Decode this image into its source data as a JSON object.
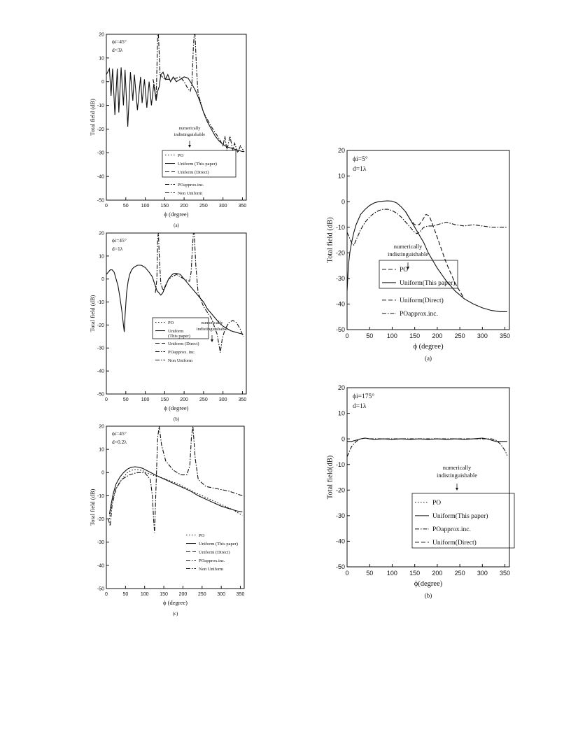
{
  "charts": [
    {
      "type": "line",
      "caption": "(a)",
      "params": [
        "ϕi=45°",
        "d=3λ"
      ],
      "xlabel": "ϕ (degree)",
      "ylabel": "Total field (dB)",
      "xlim": [
        0,
        360
      ],
      "ylim": [
        -50,
        20
      ],
      "xticks": [
        0,
        50,
        100,
        150,
        200,
        250,
        300,
        350
      ],
      "yticks": [
        20,
        10,
        0,
        -10,
        -20,
        -30,
        -40,
        -50
      ],
      "annotation": "numerically\nindistinguishable",
      "legend": [
        "PO",
        "Uniform (This paper)",
        "Uniform (Direct)",
        "POapprox.inc.",
        "Non Uniform"
      ],
      "series": [
        {
          "name": "Uniform (This paper)",
          "style": "solid",
          "x": [
            0,
            8,
            12,
            16,
            22,
            28,
            32,
            38,
            44,
            48,
            55,
            62,
            68,
            72,
            80,
            88,
            92,
            98,
            104,
            110,
            116,
            122,
            128,
            132,
            136,
            140,
            146,
            152,
            158,
            165,
            172,
            180,
            190,
            200,
            210,
            220,
            230,
            240,
            250,
            260,
            270,
            280,
            290,
            300,
            310,
            320,
            330,
            340,
            350,
            355
          ],
          "y": [
            3,
            5.5,
            -6,
            5.5,
            -14,
            5.5,
            -13,
            6,
            -10,
            5,
            -19,
            4,
            -8,
            3,
            -12,
            2,
            -9,
            1,
            -11,
            0,
            -10,
            -1,
            -8,
            -4,
            -2,
            3,
            4,
            1,
            3,
            0,
            2,
            0,
            1,
            2,
            1.5,
            -1,
            -4,
            -8,
            -13,
            -17,
            -20,
            -23,
            -25,
            -26.5,
            -27.5,
            -28,
            -28.5,
            -29,
            -29.5,
            -29.5
          ]
        },
        {
          "name": "POapprox.inc.",
          "style": "dashdot",
          "x": [
            120,
            124,
            128,
            130,
            132,
            134,
            138,
            150,
            170,
            190,
            200,
            210,
            216,
            220,
            224,
            226,
            228,
            232,
            236,
            250,
            270,
            290,
            300,
            305,
            310,
            318,
            325,
            330,
            338,
            345,
            352
          ],
          "y": [
            1,
            -2,
            -8,
            5,
            20,
            20,
            3,
            1,
            1,
            2,
            0,
            -3,
            -4,
            -1,
            15,
            20,
            20,
            5,
            -5,
            -13,
            -19,
            -24,
            -27,
            -23,
            -29,
            -23,
            -29,
            -26,
            -30,
            -27,
            -29
          ]
        }
      ]
    },
    {
      "type": "line",
      "caption": "(b)",
      "params": [
        "ϕi=45°",
        "d=1λ"
      ],
      "xlabel": "ϕ (degree)",
      "ylabel": "Total field (dB)",
      "xlim": [
        0,
        360
      ],
      "ylim": [
        -50,
        20
      ],
      "xticks": [
        0,
        50,
        100,
        150,
        200,
        250,
        300,
        350
      ],
      "yticks": [
        20,
        10,
        0,
        -10,
        -20,
        -30,
        -40,
        -50
      ],
      "annotation": "numerically\nindistinguishable",
      "legend": [
        "PO",
        "Uniform\n(This paper)",
        "Uniform (Direct)",
        "POapprox. inc.",
        "Non Uniform"
      ],
      "series": [
        {
          "name": "Uniform (This paper)",
          "style": "solid",
          "x": [
            0,
            5,
            10,
            15,
            20,
            25,
            30,
            35,
            40,
            44,
            46,
            48,
            52,
            56,
            60,
            65,
            70,
            75,
            80,
            85,
            90,
            95,
            100,
            110,
            118,
            124,
            130,
            135,
            140,
            145,
            150,
            155,
            160,
            165,
            170,
            175,
            180,
            190,
            200,
            210,
            220,
            230,
            240,
            250,
            260,
            270,
            280,
            290,
            300,
            310,
            320,
            330,
            340,
            352
          ],
          "y": [
            2,
            3,
            4,
            4,
            3,
            0,
            -3,
            -8,
            -14,
            -20,
            -23,
            -16,
            -6,
            -1,
            2,
            4,
            5,
            5.5,
            6,
            6,
            6,
            5.5,
            5,
            3,
            1,
            -2,
            -5,
            -6,
            -7,
            -6,
            -4,
            -2,
            0,
            1,
            2,
            2.5,
            2.5,
            2,
            0,
            -2,
            -4,
            -6,
            -8,
            -10,
            -13,
            -15,
            -17,
            -19,
            -20.5,
            -21.5,
            -22.5,
            -23,
            -23.5,
            -24
          ]
        },
        {
          "name": "Non Uniform",
          "style": "dashdot",
          "x": [
            126,
            130,
            132,
            134,
            136,
            140,
            146,
            160,
            180,
            200,
            214,
            218,
            222,
            224,
            226,
            230,
            236,
            250,
            270,
            285,
            293,
            298,
            305,
            315,
            325,
            335,
            345,
            352
          ],
          "y": [
            -6,
            0,
            18,
            20,
            10,
            -2,
            -5,
            0,
            2,
            0,
            -1,
            3,
            15,
            20,
            20,
            6,
            -6,
            -12,
            -17,
            -24,
            -32,
            -26,
            -22,
            -19,
            -18,
            -19,
            -22,
            -25
          ]
        }
      ]
    },
    {
      "type": "line",
      "caption": "(c)",
      "params": [
        "ϕi=45°",
        "d=0.2λ"
      ],
      "xlabel": "ϕ (degree)",
      "ylabel": "Total field (dB)",
      "xlim": [
        0,
        360
      ],
      "ylim": [
        -50,
        20
      ],
      "xticks": [
        0,
        50,
        100,
        150,
        200,
        250,
        300,
        350
      ],
      "yticks": [
        20,
        10,
        0,
        -10,
        -20,
        -30,
        -40,
        -50
      ],
      "annotation": "",
      "legend": [
        "PO",
        "Uniform (This paper)",
        "Uniform (Direct)",
        "POapprox.inc.",
        "Non Uniform"
      ],
      "series": [
        {
          "name": "Uniform (This paper)",
          "style": "solid",
          "x": [
            8,
            12,
            18,
            25,
            35,
            45,
            55,
            65,
            75,
            85,
            95,
            110,
            125,
            140,
            160,
            180,
            200,
            220,
            240,
            260,
            280,
            300,
            320,
            340,
            355
          ],
          "y": [
            -18,
            -14,
            -9,
            -5,
            -2,
            0,
            1.5,
            2.3,
            2.5,
            2.3,
            1.8,
            0.5,
            -0.8,
            -2,
            -3.5,
            -5,
            -6.5,
            -8,
            -10,
            -11.5,
            -13,
            -14.5,
            -15.5,
            -16.5,
            -17
          ]
        },
        {
          "name": "PO",
          "style": "dotted",
          "x": [
            8,
            15,
            25,
            35,
            45,
            55,
            65,
            75,
            85,
            95,
            110,
            130,
            150,
            170,
            190,
            210,
            230,
            250,
            270,
            290,
            310,
            330,
            355
          ],
          "y": [
            -20,
            -12,
            -7,
            -4,
            -2,
            0,
            1,
            1.3,
            1.2,
            0.8,
            -0.5,
            -1.5,
            -2.5,
            -3.8,
            -5.2,
            -6.8,
            -8.5,
            -10,
            -11.5,
            -13,
            -14.5,
            -16,
            -18.5
          ]
        },
        {
          "name": "Non Uniform",
          "style": "dashdot",
          "x": [
            5,
            10,
            15,
            25,
            40,
            60,
            80,
            100,
            115,
            120,
            124,
            126,
            130,
            134,
            138,
            144,
            155,
            175,
            195,
            210,
            218,
            222,
            226,
            232,
            240,
            260,
            290,
            320,
            355
          ],
          "y": [
            -20,
            -23,
            -14,
            -7,
            -3,
            -1,
            0,
            0,
            -3,
            -10,
            -22,
            -26,
            -5,
            15,
            20,
            12,
            5,
            1,
            -1,
            -1,
            3,
            15,
            20,
            6,
            -3,
            -6,
            -7,
            -8,
            -10
          ]
        }
      ]
    },
    {
      "type": "line",
      "caption": "(a)",
      "params": [
        "ϕi=5°",
        "d=1λ"
      ],
      "xlabel": "ϕ (degree)",
      "ylabel": "Total field (dB)",
      "xlim": [
        0,
        360
      ],
      "ylim": [
        -50,
        20
      ],
      "xticks": [
        0,
        50,
        100,
        150,
        200,
        250,
        300,
        350
      ],
      "yticks": [
        20,
        10,
        0,
        -10,
        -20,
        -30,
        -40,
        -50
      ],
      "annotation": "numerically\nindistinguishable",
      "legend": [
        "PO",
        "Uniform(This paper)",
        "Uniform(Direct)",
        "POapprox.inc."
      ],
      "series": [
        {
          "name": "Uniform(This paper)",
          "style": "solid",
          "x": [
            0,
            3,
            6,
            10,
            15,
            20,
            30,
            40,
            50,
            60,
            70,
            80,
            90,
            100,
            110,
            120,
            130,
            140,
            150,
            160,
            170,
            180,
            200,
            220,
            240,
            260,
            280,
            300,
            320,
            340,
            355
          ],
          "y": [
            -35,
            -25,
            -20,
            -16,
            -12,
            -9,
            -5,
            -3,
            -1.5,
            -0.5,
            0,
            0.2,
            0.3,
            0.2,
            -0.5,
            -2,
            -4,
            -7,
            -10,
            -13,
            -16,
            -20,
            -26,
            -31,
            -35,
            -38,
            -40,
            -41.5,
            -42.5,
            -43,
            -43
          ]
        },
        {
          "name": "POapprox.inc.",
          "style": "dashdot",
          "x": [
            0,
            5,
            10,
            15,
            20,
            30,
            40,
            50,
            60,
            70,
            80,
            90,
            100,
            110,
            120,
            130,
            140,
            150,
            155,
            160,
            165,
            170,
            180,
            190,
            200,
            210,
            220,
            240,
            260,
            280,
            300,
            320,
            340,
            355
          ],
          "y": [
            -12,
            -14,
            -16,
            -17,
            -15,
            -11,
            -8,
            -6,
            -4.5,
            -3.5,
            -3,
            -3,
            -3.5,
            -4.5,
            -6,
            -8,
            -10,
            -12,
            -12.5,
            -12,
            -11,
            -10,
            -9.5,
            -9.5,
            -9,
            -8.5,
            -8,
            -9,
            -9.5,
            -9,
            -9.5,
            -10,
            -10,
            -10
          ]
        },
        {
          "name": "PO",
          "style": "dashed",
          "x": [
            130,
            140,
            150,
            160,
            168,
            175,
            182,
            190,
            200,
            210,
            220,
            240,
            260
          ],
          "y": [
            -4,
            -7,
            -9,
            -9,
            -7,
            -5,
            -5.5,
            -9,
            -14,
            -19,
            -24,
            -32,
            -38
          ]
        }
      ]
    },
    {
      "type": "line",
      "caption": "(b)",
      "params": [
        "ϕi=175°",
        "d=1λ"
      ],
      "xlabel": "ϕ(degree)",
      "ylabel": "Total field(dB)",
      "xlim": [
        0,
        360
      ],
      "ylim": [
        -50,
        20
      ],
      "xticks": [
        0,
        50,
        100,
        150,
        200,
        250,
        300,
        350
      ],
      "yticks": [
        20,
        10,
        0,
        -10,
        -20,
        -30,
        -40,
        -50
      ],
      "annotation": "numerically\nindistinguishable",
      "legend": [
        "PO",
        "Uniform(This paper)",
        "POapprox.inc.",
        "Uniform(Direct)"
      ],
      "series": [
        {
          "name": "Uniform(This paper)",
          "style": "solid",
          "x": [
            0,
            10,
            20,
            30,
            40,
            50,
            60,
            80,
            100,
            120,
            140,
            160,
            180,
            200,
            220,
            240,
            260,
            280,
            300,
            310,
            320,
            330,
            340,
            350,
            355
          ],
          "y": [
            -1,
            -1,
            -0.5,
            0,
            0.3,
            0,
            -0.2,
            0,
            -0.2,
            0,
            -0.2,
            0,
            -0.2,
            0,
            -0.2,
            0,
            -0.2,
            0,
            0.3,
            0,
            -0.5,
            -1,
            -1,
            -1,
            -1
          ]
        },
        {
          "name": "POapprox.inc.",
          "style": "dashdot",
          "x": [
            0,
            5,
            10,
            20,
            30,
            40,
            50,
            320,
            330,
            340,
            350,
            355
          ],
          "y": [
            -7,
            -5,
            -3,
            -1,
            0,
            0.3,
            0,
            0,
            -0.5,
            -2,
            -4.5,
            -6.5
          ]
        }
      ]
    }
  ]
}
